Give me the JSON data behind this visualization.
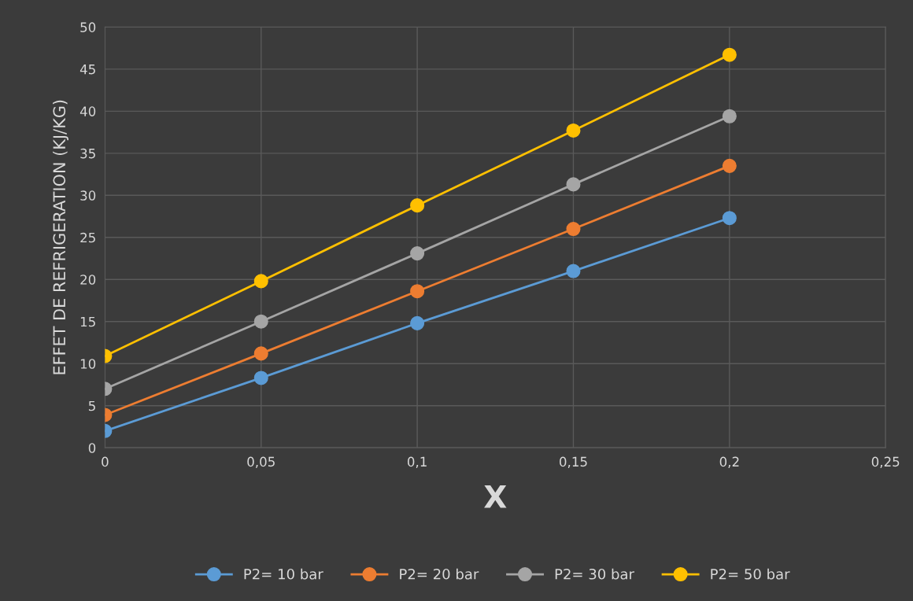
{
  "chart_data": {
    "type": "line",
    "xlabel": "X",
    "ylabel": "EFFET DE REFRIGERATION (KJ/KG)",
    "x": [
      0,
      0.05,
      0.1,
      0.15,
      0.2
    ],
    "series": [
      {
        "name": "P2= 10 bar",
        "color": "#5b9bd5",
        "values": [
          2.0,
          8.3,
          14.8,
          21.0,
          27.3
        ]
      },
      {
        "name": "P2= 20 bar",
        "color": "#ed7d31",
        "values": [
          3.9,
          11.2,
          18.6,
          26.0,
          33.5
        ]
      },
      {
        "name": "P2= 30 bar",
        "color": "#a5a5a5",
        "values": [
          7.0,
          15.0,
          23.1,
          31.3,
          39.4
        ]
      },
      {
        "name": "P2= 50 bar",
        "color": "#ffc000",
        "values": [
          10.9,
          19.8,
          28.8,
          37.7,
          46.7
        ]
      }
    ],
    "xlim": [
      0,
      0.25
    ],
    "xticks": [
      0,
      {
        "value": 0.05,
        "label": "0,05"
      },
      {
        "value": 0.1,
        "label": "0,1"
      },
      {
        "value": 0.15,
        "label": "0,15"
      },
      {
        "value": 0.2,
        "label": "0,2"
      },
      {
        "value": 0.25,
        "label": "0,25"
      }
    ],
    "ylim": [
      0,
      50
    ],
    "yticks": [
      0,
      5,
      10,
      15,
      20,
      25,
      30,
      35,
      40,
      45,
      50
    ],
    "grid": true,
    "legend": "bottom",
    "marker": "circle",
    "line_style": "solid"
  }
}
